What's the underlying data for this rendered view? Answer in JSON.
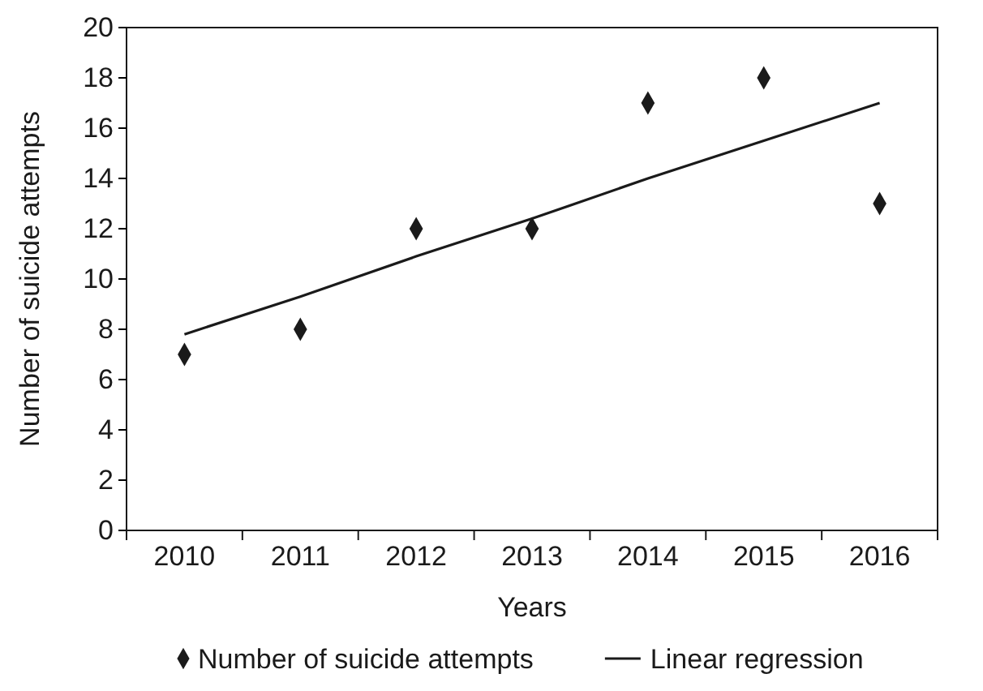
{
  "chart_data": {
    "type": "scatter",
    "xlabel": "Years",
    "ylabel": "Number of suicide attempts",
    "categories": [
      "2010",
      "2011",
      "2012",
      "2013",
      "2014",
      "2015",
      "2016"
    ],
    "series": [
      {
        "name": "Number of suicide attempts",
        "color": "#1a1a1a",
        "marker": "diamond",
        "values": [
          7,
          8,
          12,
          12,
          17,
          18,
          13
        ]
      },
      {
        "name": "Linear regression",
        "type": "line",
        "color": "#1a1a1a",
        "marker": "none",
        "line_style": "solid",
        "values": [
          7.8,
          9.3,
          10.9,
          12.4,
          14.0,
          15.5,
          17.0
        ]
      }
    ],
    "ylim": [
      0,
      20
    ],
    "yticks": [
      0,
      2,
      4,
      6,
      8,
      10,
      12,
      14,
      16,
      18,
      20
    ],
    "grid": false,
    "legend": "bottom"
  }
}
